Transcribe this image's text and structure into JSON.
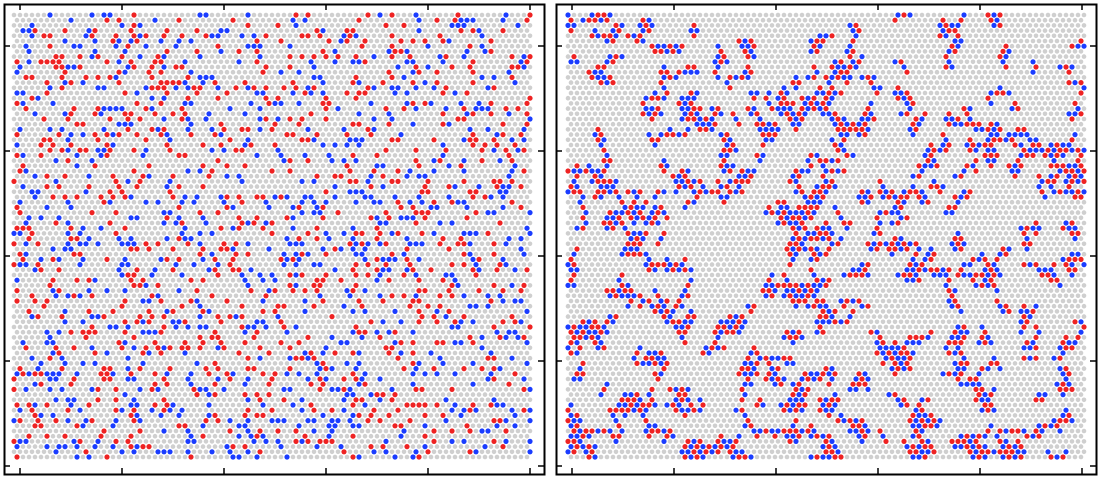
{
  "figure": {
    "panels": [
      {
        "id": "left",
        "pattern": "random-dispersed",
        "site_fraction": {
          "red": 0.12,
          "blue": 0.12
        }
      },
      {
        "id": "right",
        "pattern": "clustered-chains",
        "site_fraction": {
          "occupied": 0.26
        }
      }
    ]
  },
  "colors": {
    "background": "#ffffff",
    "lattice_site": "#cfcfcf",
    "red_particle": "#ee2222",
    "blue_particle": "#1a3cff",
    "frame": "#000000"
  },
  "axes": {
    "ticks_per_side": 5,
    "tick_labels_shown": false
  }
}
